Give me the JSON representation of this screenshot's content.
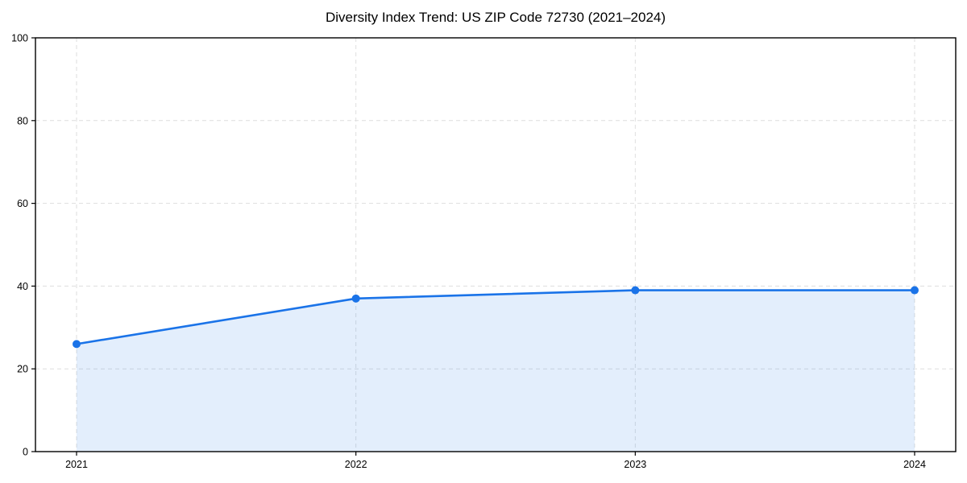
{
  "chart_data": {
    "type": "area",
    "title": "Diversity Index Trend: US ZIP Code 72730 (2021–2024)",
    "x": [
      "2021",
      "2022",
      "2023",
      "2024"
    ],
    "series": [
      {
        "name": "Diversity Index",
        "values": [
          26,
          37,
          39,
          39
        ]
      }
    ],
    "xlabel": "",
    "ylabel": "",
    "ylim": [
      0,
      100
    ],
    "yticks": [
      0,
      20,
      40,
      60,
      80,
      100
    ],
    "grid": "dashed light-gray, horizontal and vertical",
    "legend_position": "none",
    "line_color": "#1a73e8",
    "marker_color": "#1a73e8",
    "fill_color": "rgba(26,115,232,0.12)",
    "grid_color": "#dedede",
    "spine_color": "#000000",
    "background_color": "#ffffff"
  }
}
